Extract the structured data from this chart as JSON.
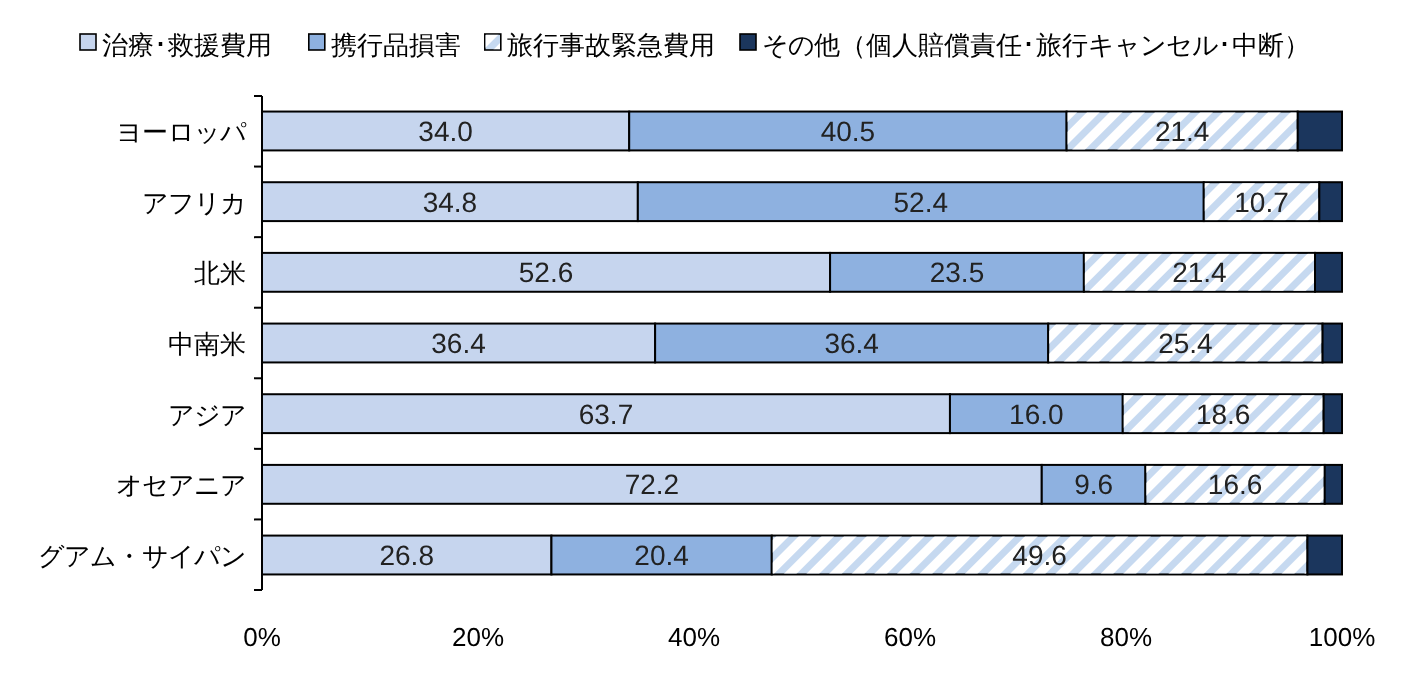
{
  "chart_data": {
    "type": "bar",
    "orientation": "horizontal",
    "stacked": true,
    "legend": "top",
    "categories": [
      "ヨーロッパ",
      "アフリカ",
      "北米",
      "中南米",
      "アジア",
      "オセアニア",
      "グアム・サイパン"
    ],
    "xlim": [
      0,
      100
    ],
    "xticks": [
      {
        "value": 0,
        "label": "0%"
      },
      {
        "value": 20,
        "label": "20%"
      },
      {
        "value": 40,
        "label": "40%"
      },
      {
        "value": 60,
        "label": "60%"
      },
      {
        "value": 80,
        "label": "80%"
      },
      {
        "value": 100,
        "label": "100%"
      }
    ],
    "series": [
      {
        "name": "治療･救援費用",
        "color": "#c6d5ee",
        "values": [
          34.0,
          34.8,
          52.6,
          36.4,
          63.7,
          72.2,
          26.8
        ],
        "value_labels": [
          "34.0",
          "34.8",
          "52.6",
          "36.4",
          "63.7",
          "72.2",
          "26.8"
        ]
      },
      {
        "name": "携行品損害",
        "color": "#8eb1e0",
        "values": [
          40.5,
          52.4,
          23.5,
          36.4,
          16.0,
          9.6,
          20.4
        ],
        "value_labels": [
          "40.5",
          "52.4",
          "23.5",
          "36.4",
          "16.0",
          "9.6",
          "20.4"
        ]
      },
      {
        "name": "旅行事故緊急費用",
        "color": "#c6d9f0",
        "values": [
          21.4,
          10.7,
          21.4,
          25.4,
          18.6,
          16.6,
          49.6
        ],
        "value_labels": [
          "21.4",
          "10.7",
          "21.4",
          "25.4",
          "18.6",
          "16.6",
          "49.6"
        ]
      },
      {
        "name": "その他（個人賠償責任･旅行キャンセル･中断）",
        "color": "#1b365d",
        "values": [
          4.1,
          2.1,
          2.5,
          1.8,
          1.7,
          1.6,
          3.2
        ]
      }
    ]
  }
}
